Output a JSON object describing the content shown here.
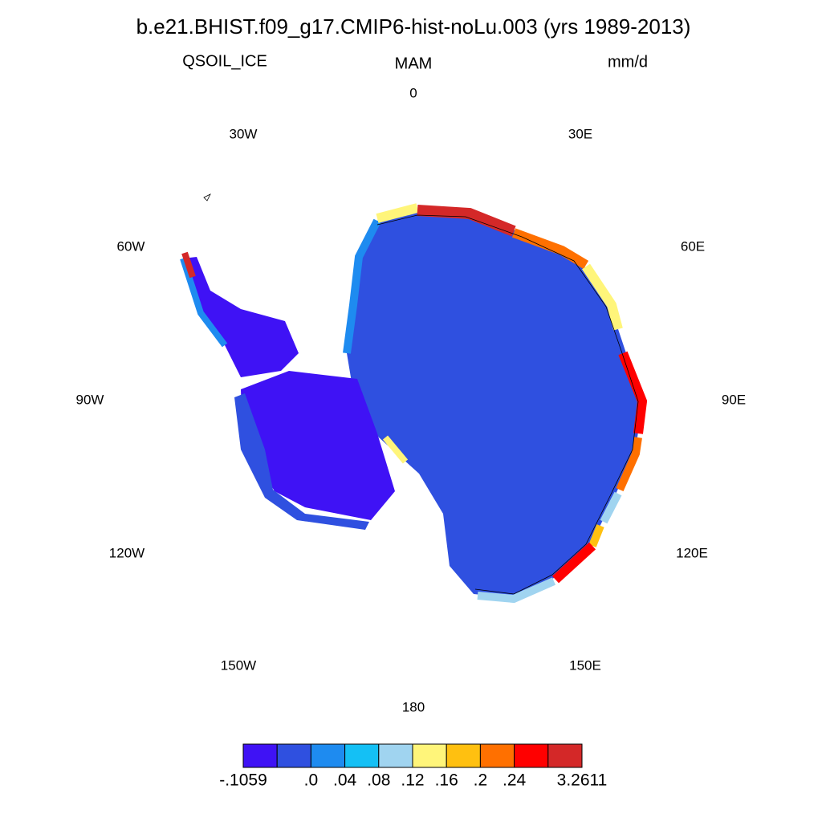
{
  "title": "b.e21.BHIST.f09_g17.CMIP6-hist-noLu.003 (yrs 1989-2013)",
  "left_string": "QSOIL_ICE",
  "center_string": "MAM",
  "right_string": "mm/d",
  "map": {
    "lon_labels": [
      "0",
      "30E",
      "60E",
      "90E",
      "120E",
      "150E",
      "180",
      "150W",
      "120W",
      "90W",
      "60W",
      "30W"
    ]
  },
  "colorbar": {
    "colors": [
      "#3f12f5",
      "#2f50e0",
      "#1e8bf0",
      "#14c0f5",
      "#a0d4f0",
      "#fff57a",
      "#ffc010",
      "#ff7000",
      "#ff0000",
      "#d42828"
    ],
    "labels": [
      "-.1059",
      ".0",
      ".04",
      ".08",
      ".12",
      ".16",
      ".2",
      ".24",
      "3.2611"
    ]
  }
}
